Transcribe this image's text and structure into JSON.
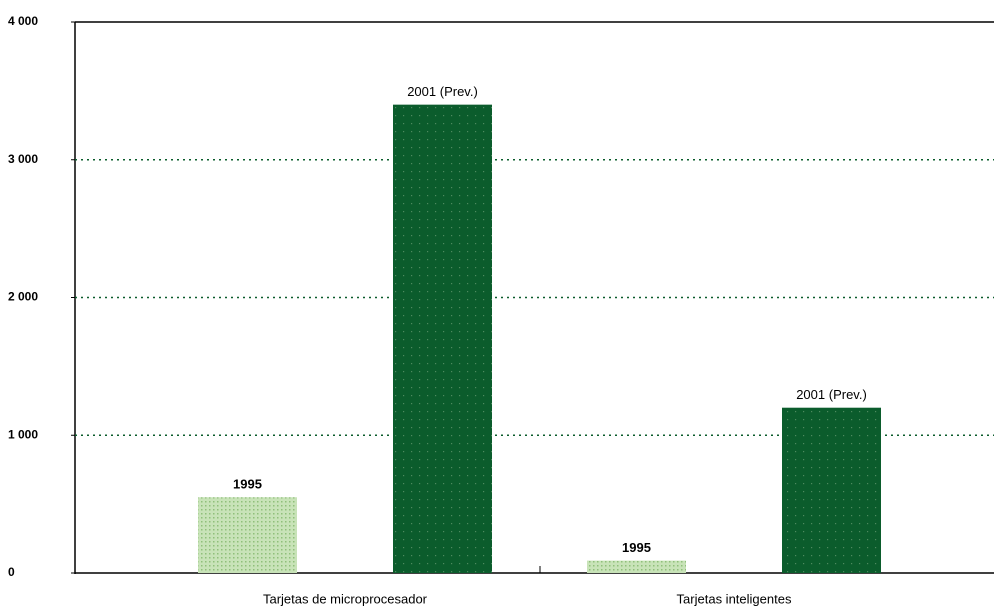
{
  "chart_data": {
    "type": "bar",
    "categories": [
      "Tarjetas de microprocesador",
      "Tarjetas inteligentes"
    ],
    "series": [
      {
        "name": "1995",
        "color": "#b3d6a0",
        "values": [
          550,
          90
        ]
      },
      {
        "name": "2001 (Prev.)",
        "color": "#0b5c2c",
        "values": [
          3400,
          1200
        ]
      }
    ],
    "ylim": [
      0,
      4000
    ],
    "yticks": [
      {
        "value": 0,
        "label": "0"
      },
      {
        "value": 1000,
        "label": "1 000"
      },
      {
        "value": 2000,
        "label": "2 000"
      },
      {
        "value": 3000,
        "label": "3 000"
      },
      {
        "value": 4000,
        "label": "4 000"
      }
    ],
    "grid": true
  }
}
